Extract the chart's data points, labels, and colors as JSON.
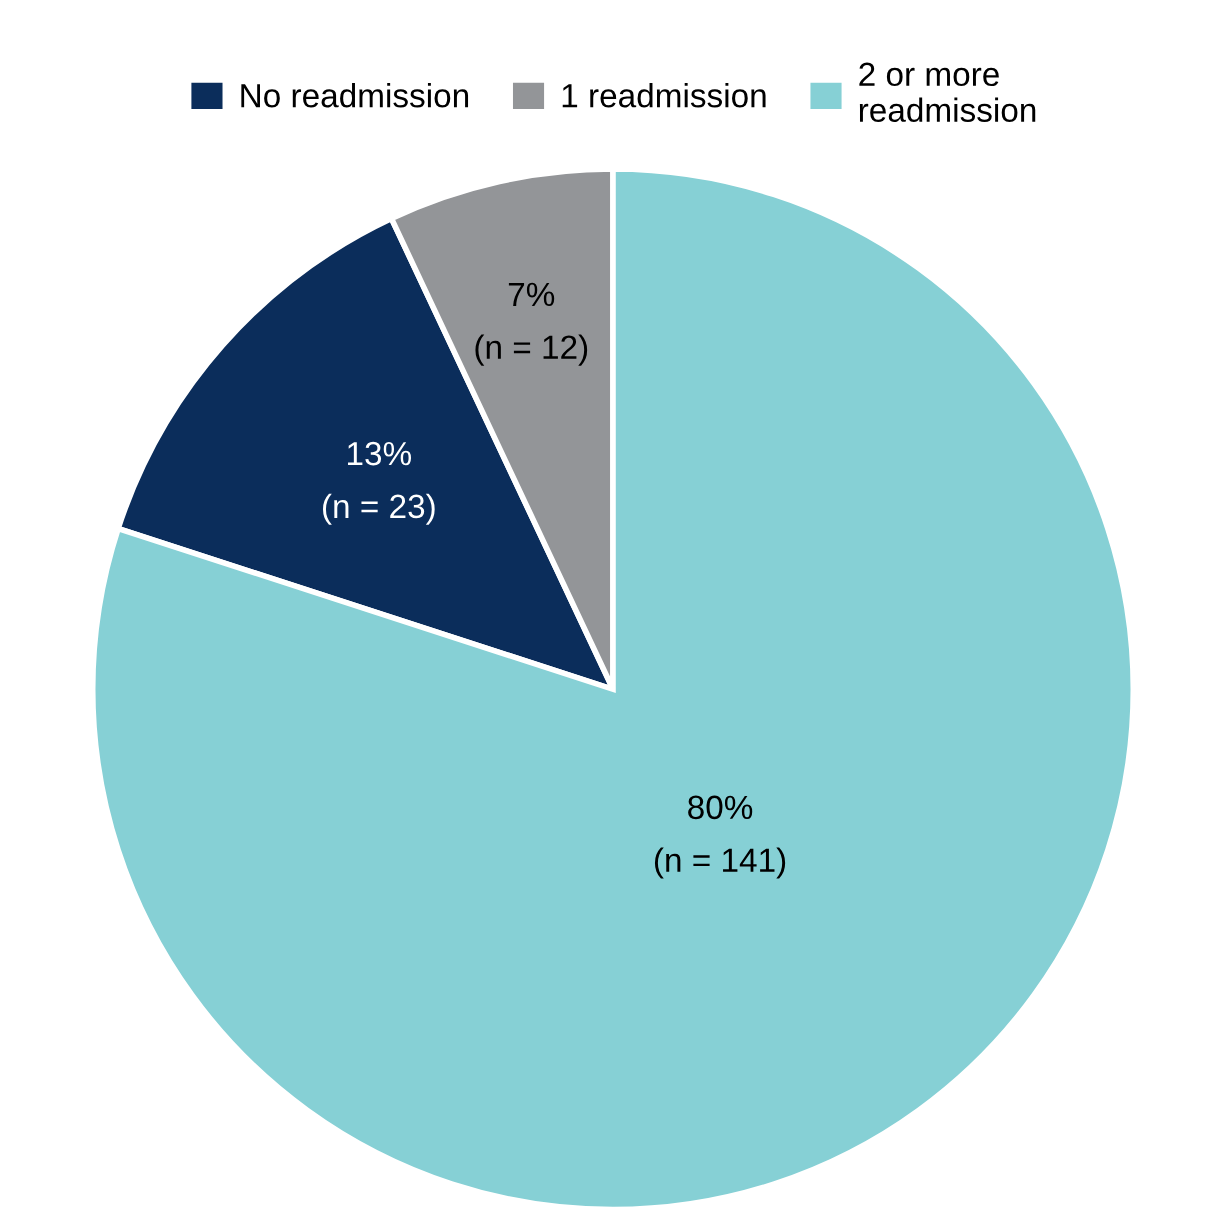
{
  "chart_data": {
    "type": "pie",
    "categories": [
      "No readmission",
      "1 readmission",
      "2 or more\nreadmission"
    ],
    "values": [
      13,
      7,
      80
    ],
    "colors": [
      "#0b2d5b",
      "#939598",
      "#86d0d5"
    ],
    "value_labels": [
      "13%\n(n = 23)",
      "7%\n(n = 12)",
      "80%\n(n = 141)"
    ],
    "legend": "top"
  }
}
